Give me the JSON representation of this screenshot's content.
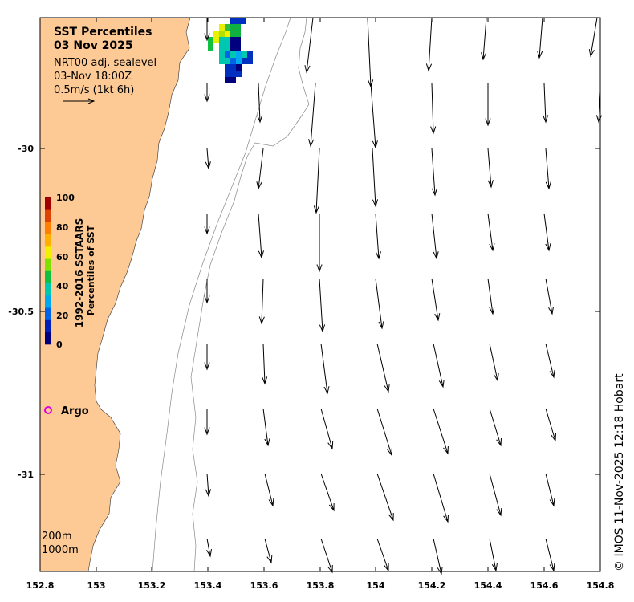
{
  "title": "SST Percentiles",
  "date": "03 Nov 2025",
  "product": "NRT00 adj. sealevel",
  "timestamp": "03-Nov 18:00Z",
  "scale_label": "0.5m/s (1kt 6h)",
  "colorbar": {
    "label_line1": "1992-2016 SSTAARS",
    "label_line2": "Percentiles of SST",
    "ticks": [
      "0",
      "20",
      "40",
      "60",
      "80",
      "100"
    ],
    "colors": [
      "#00007f",
      "#0020b8",
      "#0064e6",
      "#00a8f0",
      "#00c8b0",
      "#10c040",
      "#80e000",
      "#f0f000",
      "#ffb000",
      "#ff8000",
      "#e04000",
      "#a00000"
    ]
  },
  "argo_label": "Argo",
  "depth_labels": [
    "200m",
    "1000m"
  ],
  "x_ticks": [
    "152.8",
    "153",
    "153.2",
    "153.4",
    "153.6",
    "153.8",
    "154",
    "154.2",
    "154.4",
    "154.6",
    "154.8"
  ],
  "y_ticks": [
    "-30",
    "-30.5",
    "-31"
  ],
  "credit": "© IMOS 11-Nov-2025 12:18 Hobart",
  "colors": {
    "land": "#fdca96",
    "arrow": "#000000",
    "contour": "#888888"
  }
}
